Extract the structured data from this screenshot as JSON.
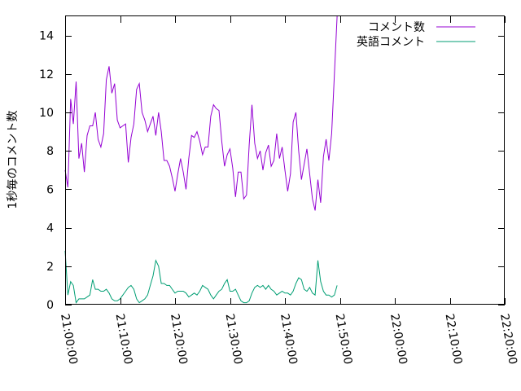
{
  "chart_data": {
    "type": "line",
    "title": "",
    "xlabel": "",
    "ylabel": "1秒毎のコメント数",
    "x_start": "21:00:00",
    "x_ticks": [
      "21:00:00",
      "21:10:00",
      "21:20:00",
      "21:30:00",
      "21:40:00",
      "21:50:00",
      "22:00:00",
      "22:10:00",
      "22:20:00"
    ],
    "y_ticks": [
      0,
      2,
      4,
      6,
      8,
      10,
      12,
      14
    ],
    "xlim": [
      "21:00:00",
      "22:20:00"
    ],
    "ylim": [
      0,
      15
    ],
    "grid": false,
    "legend_position": "top-right",
    "x_step_seconds": 30,
    "series": [
      {
        "name": "コメント数",
        "color": "#9400d3",
        "values": [
          7.0,
          6.1,
          10.7,
          9.4,
          11.6,
          7.6,
          8.4,
          6.9,
          8.8,
          9.3,
          9.3,
          10.0,
          8.6,
          8.2,
          8.9,
          11.7,
          12.4,
          11.0,
          11.5,
          9.6,
          9.2,
          9.3,
          9.4,
          7.4,
          8.7,
          9.4,
          11.2,
          11.5,
          10.0,
          9.6,
          9.0,
          9.4,
          9.8,
          8.8,
          10.0,
          9.0,
          7.5,
          7.5,
          7.2,
          6.6,
          5.9,
          6.8,
          7.6,
          6.9,
          6.0,
          7.6,
          8.8,
          8.7,
          9.0,
          8.5,
          7.8,
          8.2,
          8.2,
          9.8,
          10.4,
          10.2,
          10.1,
          8.5,
          7.2,
          7.8,
          8.1,
          7.1,
          5.6,
          6.9,
          6.9,
          5.5,
          5.7,
          8.3,
          10.4,
          8.4,
          7.6,
          8.0,
          7.0,
          7.9,
          8.3,
          7.2,
          7.5,
          8.9,
          7.6,
          8.2,
          7.0,
          5.9,
          6.8,
          9.5,
          10.0,
          8.0,
          6.5,
          7.3,
          8.1,
          6.8,
          5.5,
          4.9,
          6.5,
          5.3,
          7.7,
          8.6,
          7.5,
          8.9,
          12.0,
          15.0
        ]
      },
      {
        "name": "英語コメント",
        "color": "#009e73",
        "values": [
          2.8,
          0.5,
          1.2,
          1.0,
          0.1,
          0.3,
          0.3,
          0.3,
          0.4,
          0.5,
          1.3,
          0.8,
          0.8,
          0.7,
          0.7,
          0.8,
          0.6,
          0.3,
          0.2,
          0.2,
          0.3,
          0.5,
          0.7,
          0.9,
          1.0,
          0.8,
          0.3,
          0.1,
          0.2,
          0.3,
          0.5,
          1.0,
          1.5,
          2.3,
          2.0,
          1.1,
          1.1,
          1.0,
          1.0,
          0.8,
          0.6,
          0.7,
          0.7,
          0.7,
          0.6,
          0.4,
          0.5,
          0.6,
          0.5,
          0.7,
          1.0,
          0.9,
          0.8,
          0.5,
          0.3,
          0.5,
          0.7,
          0.8,
          1.1,
          1.3,
          0.7,
          0.7,
          0.8,
          0.5,
          0.2,
          0.1,
          0.1,
          0.2,
          0.6,
          0.9,
          1.0,
          0.9,
          1.0,
          0.8,
          1.0,
          0.8,
          0.7,
          0.5,
          0.6,
          0.7,
          0.6,
          0.6,
          0.5,
          0.7,
          1.1,
          1.4,
          1.3,
          0.8,
          0.7,
          0.9,
          0.6,
          0.5,
          2.3,
          1.2,
          0.7,
          0.5,
          0.5,
          0.4,
          0.5,
          1.0
        ]
      }
    ]
  }
}
